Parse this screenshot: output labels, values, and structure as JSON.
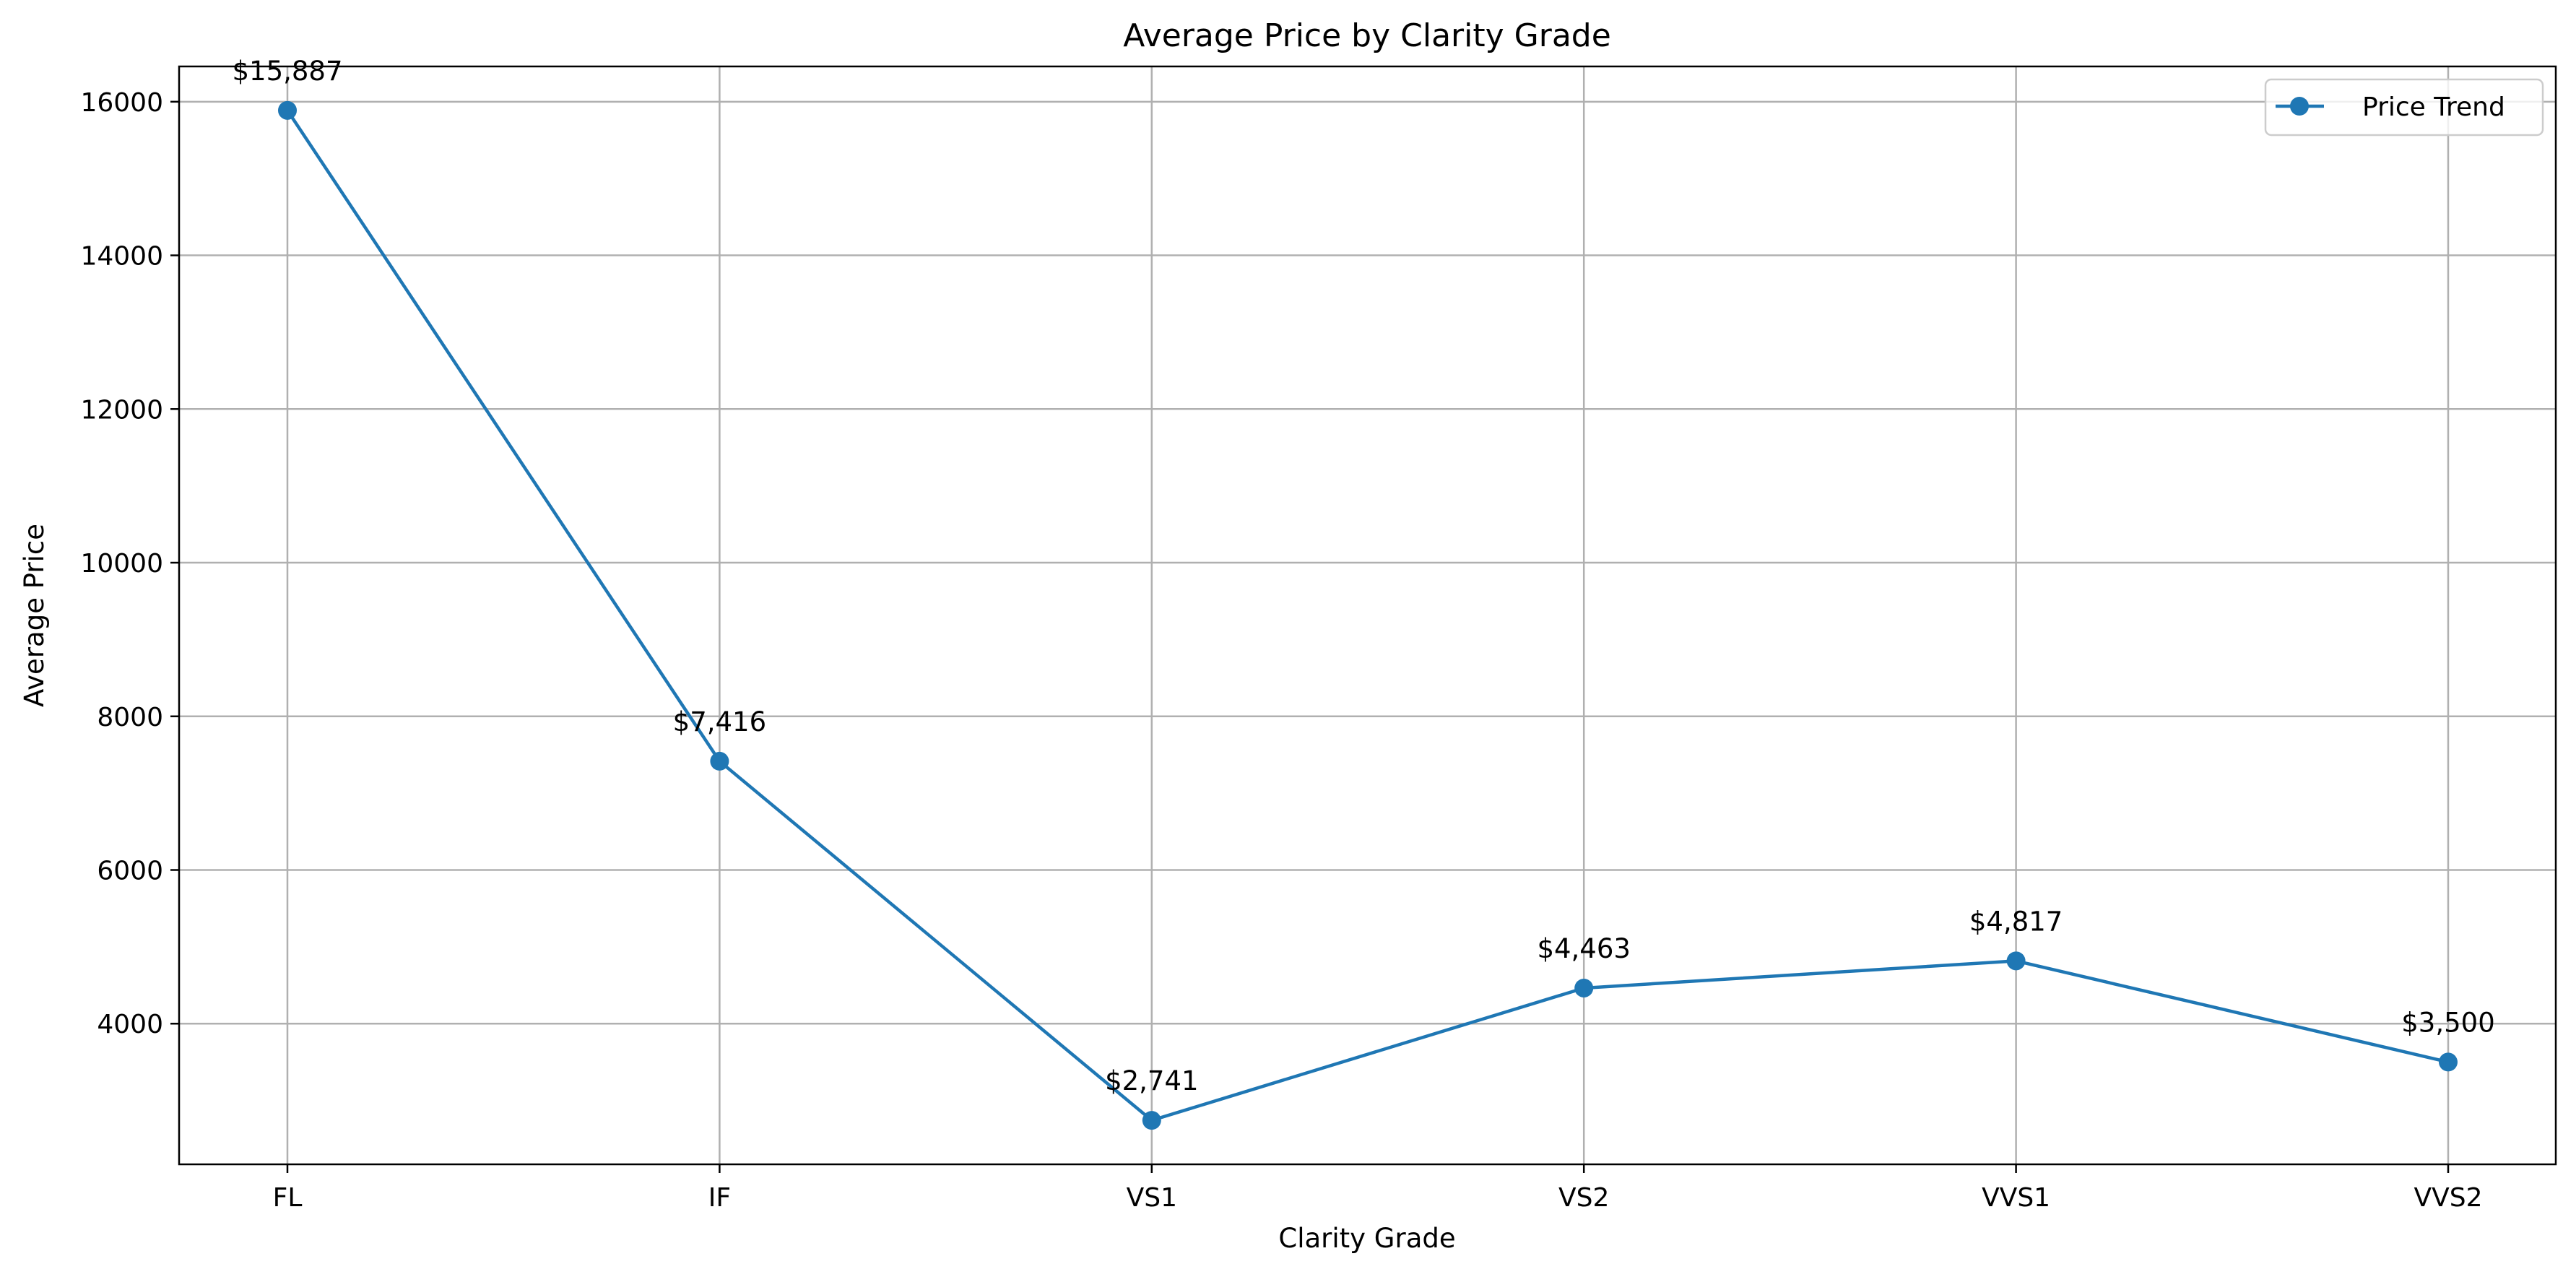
{
  "chart_data": {
    "type": "line",
    "title": "Average Price by Clarity Grade",
    "xlabel": "Clarity Grade",
    "ylabel": "Average Price",
    "categories": [
      "FL",
      "IF",
      "VS1",
      "VS2",
      "VVS1",
      "VVS2"
    ],
    "series": [
      {
        "name": "Price Trend",
        "values": [
          15887,
          7416,
          2741,
          4463,
          4817,
          3500
        ],
        "data_labels": [
          "$15,887",
          "$7,416",
          "$2,741",
          "$4,463",
          "$4,817",
          "$3,500"
        ],
        "color": "#1f77b4",
        "marker": "circle"
      }
    ],
    "ylim": [
      2169,
      16459
    ],
    "yticks": [
      4000,
      6000,
      8000,
      10000,
      12000,
      14000,
      16000
    ],
    "grid": true,
    "legend_position": "top-right"
  }
}
